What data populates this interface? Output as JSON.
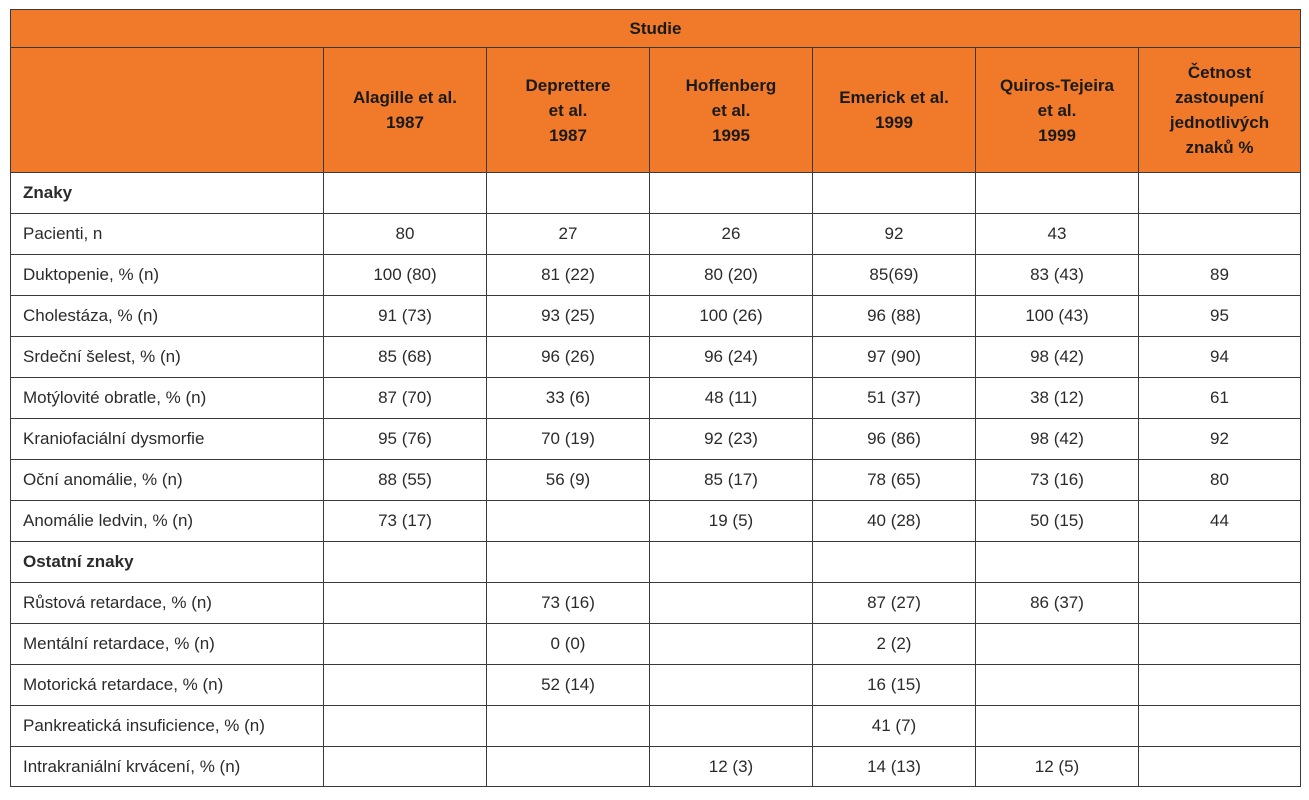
{
  "header": {
    "group_label": "Studie",
    "columns": [
      "",
      "Alagille et al.\n1987",
      "Deprettere\net al.\n1987",
      "Hoffenberg\net al.\n1995",
      "Emerick et al.\n1999",
      "Quiros-Tejeira\net al.\n1999",
      "Četnost\nzastoupení\njednotlivých\nznaků %"
    ]
  },
  "rows": [
    {
      "label": "Znaky",
      "section": true,
      "values": [
        "",
        "",
        "",
        "",
        "",
        ""
      ]
    },
    {
      "label": "Pacienti, n",
      "values": [
        "80",
        "27",
        "26",
        "92",
        "43",
        ""
      ]
    },
    {
      "label": "Duktopenie, % (n)",
      "values": [
        "100 (80)",
        "81 (22)",
        "80 (20)",
        "85(69)",
        "83 (43)",
        "89"
      ]
    },
    {
      "label": "Cholestáza, % (n)",
      "values": [
        "91 (73)",
        "93 (25)",
        "100 (26)",
        "96 (88)",
        "100 (43)",
        "95"
      ]
    },
    {
      "label": "Srdeční šelest, % (n)",
      "values": [
        "85 (68)",
        "96 (26)",
        "96 (24)",
        "97 (90)",
        "98 (42)",
        "94"
      ]
    },
    {
      "label": "Motýlovité obratle, % (n)",
      "values": [
        "87 (70)",
        "33 (6)",
        "48 (11)",
        "51 (37)",
        "38 (12)",
        "61"
      ]
    },
    {
      "label": "Kraniofaciální dysmorfie",
      "values": [
        "95 (76)",
        "70 (19)",
        "92 (23)",
        "96 (86)",
        "98 (42)",
        "92"
      ]
    },
    {
      "label": "Oční anomálie, % (n)",
      "values": [
        "88 (55)",
        "56 (9)",
        "85 (17)",
        "78 (65)",
        "73 (16)",
        "80"
      ]
    },
    {
      "label": "Anomálie ledvin, % (n)",
      "values": [
        "73 (17)",
        "",
        "19 (5)",
        "40 (28)",
        "50 (15)",
        "44"
      ]
    },
    {
      "label": "Ostatní znaky",
      "section": true,
      "values": [
        "",
        "",
        "",
        "",
        "",
        ""
      ]
    },
    {
      "label": "Růstová retardace, % (n)",
      "values": [
        "",
        "73 (16)",
        "",
        "87 (27)",
        "86 (37)",
        ""
      ]
    },
    {
      "label": "Mentální retardace, % (n)",
      "values": [
        "",
        "0 (0)",
        "",
        "2 (2)",
        "",
        ""
      ]
    },
    {
      "label": "Motorická retardace, % (n)",
      "values": [
        "",
        "52 (14)",
        "",
        "16 (15)",
        "",
        ""
      ]
    },
    {
      "label": "Pankreatická insuficience, % (n)",
      "values": [
        "",
        "",
        "",
        "41 (7)",
        "",
        ""
      ]
    },
    {
      "label": "Intrakraniální krvácení, % (n)",
      "values": [
        "",
        "",
        "12 (3)",
        "14 (13)",
        "12 (5)",
        ""
      ]
    }
  ]
}
